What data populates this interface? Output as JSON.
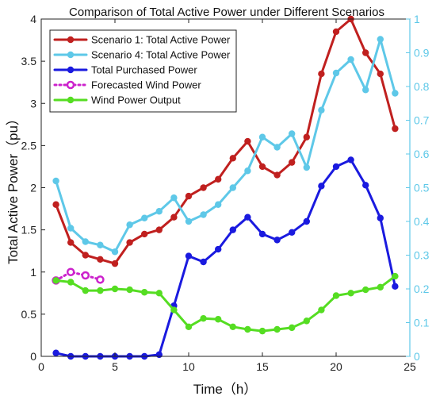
{
  "chart_data": {
    "type": "line",
    "title": "Comparison of Total Active Power under Different Scenarios",
    "xlabel": "Time（h）",
    "ylabel": "Total Active Power（pu）",
    "xlim": [
      0,
      25
    ],
    "ylim": [
      0,
      4
    ],
    "ylim_right": [
      0,
      1
    ],
    "x_ticks": [
      "0",
      "5",
      "10",
      "15",
      "20",
      "25"
    ],
    "y_ticks": [
      "0",
      "0.5",
      "1",
      "1.5",
      "2",
      "2.5",
      "3",
      "3.5",
      "4"
    ],
    "y2_ticks": [
      "0",
      "0.1",
      "0.2",
      "0.3",
      "0.4",
      "0.5",
      "0.6",
      "0.7",
      "0.8",
      "0.9",
      "1"
    ],
    "grid": false,
    "legend_position": "top-left",
    "colors": {
      "right_axis": "#5ec8e8"
    },
    "series": [
      {
        "name": "Scenario 1: Total Active Power",
        "axis": "left",
        "color": "#c0201f",
        "marker": "filled-circle",
        "linestyle": "solid",
        "x": [
          1,
          2,
          3,
          4,
          5,
          6,
          7,
          8,
          9,
          10,
          11,
          12,
          13,
          14,
          15,
          16,
          17,
          18,
          19,
          20,
          21,
          22,
          23,
          24
        ],
        "values": [
          1.8,
          1.35,
          1.2,
          1.15,
          1.1,
          1.35,
          1.45,
          1.5,
          1.65,
          1.9,
          2.0,
          2.1,
          2.35,
          2.55,
          2.25,
          2.15,
          2.3,
          2.6,
          3.35,
          3.85,
          4.0,
          3.6,
          3.35,
          2.7
        ]
      },
      {
        "name": "Scenario 4: Total Active Power",
        "axis": "right",
        "color": "#5ec8e8",
        "marker": "filled-circle",
        "linestyle": "solid",
        "x": [
          1,
          2,
          3,
          4,
          5,
          6,
          7,
          8,
          9,
          10,
          11,
          12,
          13,
          14,
          15,
          16,
          17,
          18,
          19,
          20,
          21,
          22,
          23,
          24
        ],
        "values": [
          0.52,
          0.38,
          0.34,
          0.33,
          0.31,
          0.39,
          0.41,
          0.43,
          0.47,
          0.4,
          0.42,
          0.45,
          0.5,
          0.55,
          0.65,
          0.62,
          0.66,
          0.56,
          0.73,
          0.84,
          0.88,
          0.79,
          0.94,
          0.78
        ]
      },
      {
        "name": "Total Purchased Power",
        "axis": "left",
        "color": "#1a1adf",
        "marker": "filled-circle",
        "linestyle": "solid",
        "x": [
          1,
          2,
          3,
          4,
          5,
          6,
          7,
          8,
          9,
          10,
          11,
          12,
          13,
          14,
          15,
          16,
          17,
          18,
          19,
          20,
          21,
          22,
          23,
          24
        ],
        "values": [
          0.04,
          0.0,
          0.0,
          0.0,
          0.0,
          0.0,
          0.0,
          0.02,
          0.6,
          1.19,
          1.12,
          1.27,
          1.5,
          1.65,
          1.45,
          1.38,
          1.47,
          1.6,
          2.02,
          2.25,
          2.33,
          2.03,
          1.64,
          0.83
        ]
      },
      {
        "name": "Forecasted Wind Power",
        "axis": "left",
        "color": "#cc22cc",
        "marker": "open-circle",
        "linestyle": "dotted",
        "x": [
          1,
          2,
          3,
          4
        ],
        "values": [
          0.9,
          1.0,
          0.96,
          0.91
        ]
      },
      {
        "name": "Wind Power Output",
        "axis": "left",
        "color": "#55dd22",
        "marker": "filled-circle",
        "linestyle": "solid",
        "x": [
          1,
          2,
          3,
          4,
          5,
          6,
          7,
          8,
          9,
          10,
          11,
          12,
          13,
          14,
          15,
          16,
          17,
          18,
          19,
          20,
          21,
          22,
          23,
          24
        ],
        "values": [
          0.9,
          0.88,
          0.78,
          0.78,
          0.8,
          0.79,
          0.76,
          0.75,
          0.55,
          0.35,
          0.45,
          0.44,
          0.35,
          0.32,
          0.3,
          0.32,
          0.34,
          0.42,
          0.55,
          0.72,
          0.75,
          0.79,
          0.82,
          0.95
        ]
      }
    ]
  }
}
